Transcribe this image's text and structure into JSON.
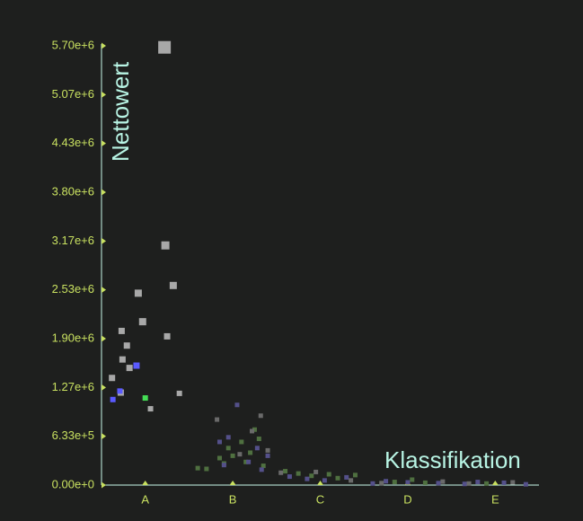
{
  "chart_data": {
    "type": "scatter",
    "x_label": "Klassifikation",
    "y_label": "Nettowert",
    "xlim": [
      -0.5,
      4.5
    ],
    "xticks": [
      {
        "value": 0,
        "label": "A"
      },
      {
        "value": 1,
        "label": "B"
      },
      {
        "value": 2,
        "label": "C"
      },
      {
        "value": 3,
        "label": "D"
      },
      {
        "value": 4,
        "label": "E"
      }
    ],
    "ylim": [
      0,
      5700000
    ],
    "yticks": [
      {
        "value": 0,
        "label": "0.00e+0"
      },
      {
        "value": 633333,
        "label": "6.33e+5"
      },
      {
        "value": 1266667,
        "label": "1.27e+6"
      },
      {
        "value": 1900000,
        "label": "1.90e+6"
      },
      {
        "value": 2533333,
        "label": "2.53e+6"
      },
      {
        "value": 3166667,
        "label": "3.17e+6"
      },
      {
        "value": 3800000,
        "label": "3.80e+6"
      },
      {
        "value": 4433333,
        "label": "4.43e+6"
      },
      {
        "value": 5066667,
        "label": "5.07e+6"
      },
      {
        "value": 5700000,
        "label": "5.70e+6"
      }
    ],
    "series": [
      {
        "color": "#a8a8a8",
        "size": [
          14,
          9,
          8,
          8,
          8,
          7,
          7,
          7,
          7,
          7,
          7,
          7,
          6,
          6
        ],
        "x": [
          0.22,
          0.23,
          0.32,
          -0.08,
          -0.03,
          -0.27,
          0.25,
          -0.21,
          -0.26,
          -0.18,
          -0.38,
          -0.28,
          0.39,
          0.06
        ],
        "values": [
          5680000,
          3110000,
          2590000,
          2490000,
          2120000,
          2000000,
          1930000,
          1810000,
          1630000,
          1520000,
          1390000,
          1200000,
          1190000,
          990000
        ]
      },
      {
        "color": "#5a5aff",
        "size": [
          7,
          6,
          6
        ],
        "x": [
          -0.1,
          -0.37,
          -0.29
        ],
        "values": [
          1550000,
          1110000,
          1220000
        ]
      },
      {
        "color": "#44dd55",
        "size": [
          6
        ],
        "x": [
          0.0
        ],
        "values": [
          1130000
        ]
      },
      {
        "color": "#4f7040",
        "size": [
          5,
          5,
          5,
          5,
          5,
          5,
          5,
          5,
          5,
          5,
          5,
          5,
          5,
          5,
          5,
          5,
          5,
          5,
          5,
          5,
          5,
          5
        ],
        "x": [
          0.6,
          0.7,
          0.85,
          0.95,
          1.1,
          1.15,
          1.3,
          1.35,
          1.2,
          0.9,
          1.0,
          1.25,
          1.6,
          1.75,
          1.9,
          2.1,
          2.2,
          2.4,
          2.85,
          3.05,
          3.2,
          3.9
        ],
        "values": [
          220000,
          210000,
          350000,
          480000,
          560000,
          300000,
          600000,
          250000,
          420000,
          280000,
          380000,
          720000,
          180000,
          150000,
          120000,
          140000,
          90000,
          130000,
          40000,
          70000,
          30000,
          20000
        ]
      },
      {
        "color": "#54508a",
        "size": [
          5,
          5,
          5,
          5,
          5,
          5,
          5,
          5,
          5,
          5,
          5,
          5,
          5,
          5,
          5,
          5,
          5,
          5,
          5,
          5
        ],
        "x": [
          0.85,
          0.9,
          1.05,
          1.28,
          1.33,
          1.4,
          0.95,
          1.18,
          1.65,
          1.85,
          2.05,
          2.3,
          2.6,
          2.75,
          3.0,
          3.35,
          3.65,
          3.8,
          4.1,
          4.35
        ],
        "values": [
          560000,
          260000,
          1040000,
          480000,
          200000,
          380000,
          620000,
          300000,
          110000,
          80000,
          60000,
          100000,
          20000,
          50000,
          35000,
          25000,
          15000,
          40000,
          30000,
          10000
        ]
      },
      {
        "color": "#6a6a6a",
        "size": [
          5,
          5,
          5,
          5,
          5,
          5,
          5,
          5,
          5,
          5,
          5,
          5
        ],
        "x": [
          0.82,
          1.08,
          1.22,
          1.32,
          1.4,
          1.55,
          1.95,
          2.35,
          2.7,
          3.4,
          3.7,
          4.2
        ],
        "values": [
          850000,
          400000,
          700000,
          900000,
          450000,
          160000,
          170000,
          60000,
          25000,
          45000,
          20000,
          35000
        ]
      }
    ]
  }
}
